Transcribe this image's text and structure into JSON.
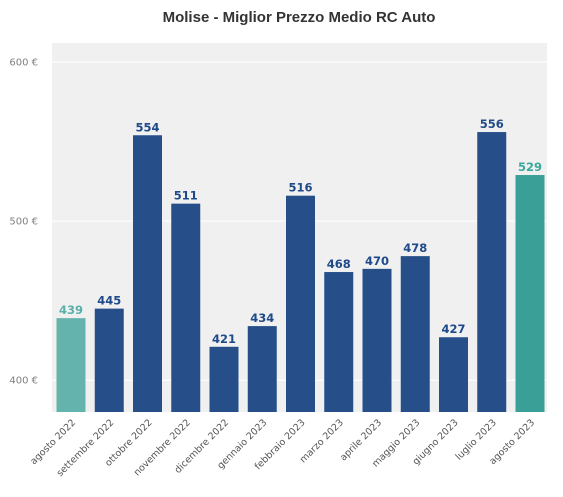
{
  "chart_data": {
    "type": "bar",
    "title": "Molise - Miglior Prezzo Medio RC Auto",
    "xlabel": "",
    "ylabel": "",
    "ylim": [
      380,
      612
    ],
    "yticks": [
      400,
      500,
      600
    ],
    "ytick_labels": [
      "400 €",
      "500 €",
      "600 €"
    ],
    "grid": true,
    "categories": [
      "agosto 2022",
      "settembre 2022",
      "ottobre 2022",
      "novembre 2022",
      "dicembre 2022",
      "gennaio 2023",
      "febbraio 2023",
      "marzo 2023",
      "aprile 2023",
      "maggio 2023",
      "giugno 2023",
      "luglio 2023",
      "agosto 2023"
    ],
    "values": [
      439,
      445,
      554,
      511,
      421,
      434,
      516,
      468,
      470,
      478,
      427,
      556,
      529
    ],
    "data_labels": [
      "439",
      "445",
      "554",
      "511",
      "421",
      "434",
      "516",
      "468",
      "470",
      "478",
      "427",
      "556",
      "529"
    ],
    "colors": {
      "background": "#f0f0f0",
      "grid": "#ffffff",
      "bar_default": "#264f8a",
      "label_default": "#1f4a8a",
      "bar_first": "#65b3ad",
      "label_first": "#5ab0aa",
      "bar_last": "#3aa097",
      "label_last": "#3aa89e"
    }
  }
}
